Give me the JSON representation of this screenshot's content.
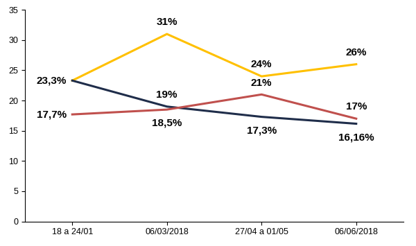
{
  "chart_data": {
    "type": "line",
    "categories": [
      "18 a 24/01",
      "06/03/2018",
      "27/04 a 01/05",
      "06/06/2018"
    ],
    "series": [
      {
        "color": "#FFC000",
        "values": [
          23.3,
          31,
          24,
          26
        ],
        "value_labels": [
          "23,3%",
          "31%",
          "24%",
          "26%"
        ]
      },
      {
        "color": "#1F2D4A",
        "values": [
          23.3,
          19,
          17.3,
          16.16
        ],
        "value_labels": [
          null,
          "19%",
          "17,3%",
          "16,16%"
        ]
      },
      {
        "color": "#C0504D",
        "values": [
          17.7,
          18.5,
          21,
          17
        ],
        "value_labels": [
          "17,7%",
          "18,5%",
          "21%",
          "17%"
        ]
      }
    ],
    "ylim": [
      0,
      35
    ],
    "yticks": [
      0,
      5,
      10,
      15,
      20,
      25,
      30,
      35
    ],
    "grid": false,
    "data_labels": true
  }
}
